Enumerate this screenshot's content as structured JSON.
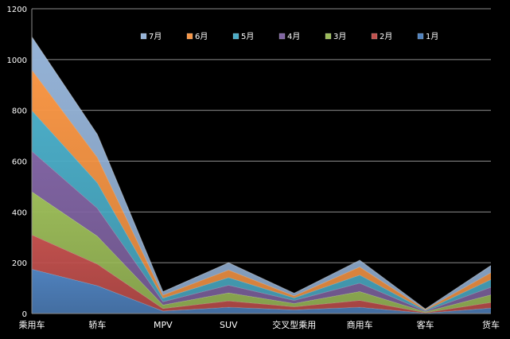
{
  "chart_data": {
    "type": "area",
    "stacked": true,
    "categories": [
      "乘用车",
      "轿车",
      "MPV",
      "SUV",
      "交叉型乘用",
      "商用车",
      "客车",
      "货车"
    ],
    "series": [
      {
        "name": "1月",
        "color": "#4F81BD",
        "values": [
          175,
          110,
          10,
          25,
          15,
          25,
          2,
          22
        ]
      },
      {
        "name": "2月",
        "color": "#C0504D",
        "values": [
          135,
          85,
          10,
          25,
          12,
          27,
          2,
          22
        ]
      },
      {
        "name": "3月",
        "color": "#9BBB59",
        "values": [
          170,
          110,
          14,
          32,
          13,
          35,
          3,
          30
        ]
      },
      {
        "name": "4月",
        "color": "#8064A2",
        "values": [
          160,
          110,
          13,
          30,
          12,
          33,
          3,
          30
        ]
      },
      {
        "name": "5月",
        "color": "#4BACC6",
        "values": [
          160,
          100,
          14,
          30,
          10,
          32,
          3,
          30
        ]
      },
      {
        "name": "6月",
        "color": "#F79646",
        "values": [
          160,
          100,
          12,
          30,
          8,
          32,
          3,
          27
        ]
      },
      {
        "name": "7月",
        "color": "#95B3D7",
        "values": [
          130,
          90,
          13,
          28,
          10,
          26,
          2,
          28
        ]
      }
    ],
    "legend_order": [
      "7月",
      "6月",
      "5月",
      "4月",
      "3月",
      "2月",
      "1月"
    ],
    "ylim": [
      0,
      1200
    ],
    "yticks": [
      "0",
      "200",
      "400",
      "600",
      "800",
      "1000",
      "1200"
    ],
    "grid": true,
    "legend_position": "top"
  }
}
